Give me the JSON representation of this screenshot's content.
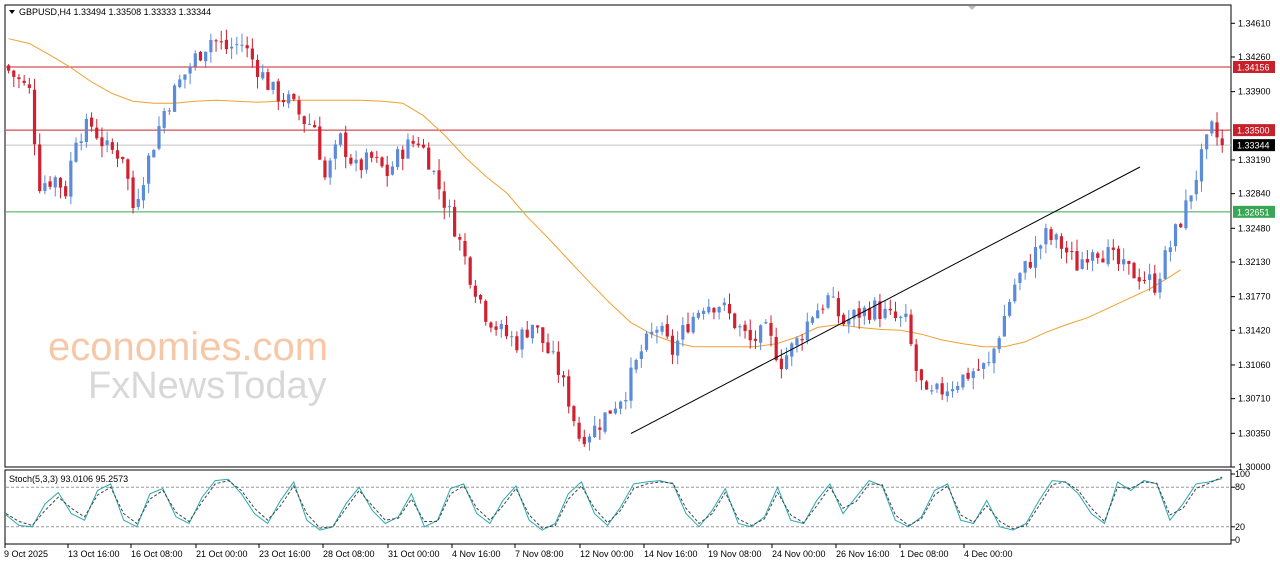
{
  "header": {
    "symbol_info": "GBPUSD,H4  1.33494 1.33508 1.33333 1.33344"
  },
  "watermark": {
    "line1": "economies.com",
    "line2": "FxNewsToday"
  },
  "colors": {
    "bull": "#5b8bd9",
    "bear": "#d1202f",
    "ma": "#f0a030",
    "resistance": "#c8202a",
    "support": "#3aa655",
    "current": "#000000",
    "trendline": "#000000",
    "stoch_main": "#2aa8b0",
    "stoch_signal": "#444444"
  },
  "chart_data": [
    {
      "type": "candlestick",
      "title": "GBPUSD,H4",
      "ylim": [
        1.3,
        1.348
      ],
      "y_ticks": [
        "1.34610",
        "1.34260",
        "1.33900",
        "1.33190",
        "1.32840",
        "1.32480",
        "1.32130",
        "1.31770",
        "1.31420",
        "1.31060",
        "1.30710",
        "1.30350",
        "1.30000"
      ],
      "x_ticks": [
        "9 Oct 2025",
        "13 Oct 16:00",
        "16 Oct 08:00",
        "21 Oct 00:00",
        "23 Oct 16:00",
        "28 Oct 08:00",
        "31 Oct 00:00",
        "4 Nov 16:00",
        "7 Nov 08:00",
        "12 Nov 00:00",
        "14 Nov 16:00",
        "19 Nov 08:00",
        "24 Nov 00:00",
        "26 Nov 16:00",
        "1 Dec 08:00",
        "4 Dec 00:00"
      ],
      "price_levels": [
        {
          "label": "1.34156",
          "value": 1.34156,
          "kind": "resistance"
        },
        {
          "label": "1.33500",
          "value": 1.335,
          "kind": "resistance"
        },
        {
          "label": "1.33344",
          "value": 1.33344,
          "kind": "current"
        },
        {
          "label": "1.32651",
          "value": 1.32651,
          "kind": "support"
        }
      ],
      "trendline": {
        "from": {
          "bar": 120,
          "price": 1.304
        },
        "to": {
          "bar": 191,
          "price": 1.332
        }
      },
      "close_path": [
        [
          0,
          1.3412
        ],
        [
          4,
          1.339
        ],
        [
          6,
          1.3295
        ],
        [
          9,
          1.33
        ],
        [
          11,
          1.3287
        ],
        [
          13,
          1.3345
        ],
        [
          16,
          1.3355
        ],
        [
          19,
          1.333
        ],
        [
          22,
          1.3325
        ],
        [
          24,
          1.327
        ],
        [
          27,
          1.332
        ],
        [
          30,
          1.337
        ],
        [
          33,
          1.34
        ],
        [
          36,
          1.3425
        ],
        [
          39,
          1.3445
        ],
        [
          42,
          1.3435
        ],
        [
          45,
          1.344
        ],
        [
          48,
          1.3415
        ],
        [
          51,
          1.339
        ],
        [
          54,
          1.338
        ],
        [
          57,
          1.336
        ],
        [
          59,
          1.3355
        ],
        [
          61,
          1.33
        ],
        [
          64,
          1.334
        ],
        [
          67,
          1.331
        ],
        [
          70,
          1.332
        ],
        [
          73,
          1.3305
        ],
        [
          76,
          1.333
        ],
        [
          79,
          1.334
        ],
        [
          81,
          1.332
        ],
        [
          83,
          1.329
        ],
        [
          86,
          1.325
        ],
        [
          89,
          1.32
        ],
        [
          92,
          1.316
        ],
        [
          95,
          1.314
        ],
        [
          98,
          1.313
        ],
        [
          101,
          1.315
        ],
        [
          104,
          1.312
        ],
        [
          106,
          1.31
        ],
        [
          108,
          1.307
        ],
        [
          110,
          1.3032
        ],
        [
          113,
          1.304
        ],
        [
          116,
          1.306
        ],
        [
          119,
          1.308
        ],
        [
          122,
          1.312
        ],
        [
          125,
          1.3145
        ],
        [
          128,
          1.312
        ],
        [
          131,
          1.315
        ],
        [
          134,
          1.317
        ],
        [
          137,
          1.317
        ],
        [
          140,
          1.315
        ],
        [
          143,
          1.313
        ],
        [
          146,
          1.314
        ],
        [
          149,
          1.311
        ],
        [
          152,
          1.313
        ],
        [
          155,
          1.316
        ],
        [
          158,
          1.3175
        ],
        [
          161,
          1.315
        ],
        [
          164,
          1.316
        ],
        [
          167,
          1.3165
        ],
        [
          170,
          1.3155
        ],
        [
          173,
          1.315
        ],
        [
          175,
          1.31
        ],
        [
          177,
          1.307
        ],
        [
          180,
          1.308
        ],
        [
          183,
          1.309
        ],
        [
          186,
          1.31
        ],
        [
          189,
          1.3105
        ],
        [
          191,
          1.314
        ],
        [
          194,
          1.319
        ],
        [
          197,
          1.3215
        ],
        [
          200,
          1.324
        ],
        [
          203,
          1.323
        ],
        [
          206,
          1.321
        ],
        [
          209,
          1.323
        ],
        [
          212,
          1.322
        ],
        [
          215,
          1.3205
        ],
        [
          218,
          1.32
        ],
        [
          221,
          1.319
        ],
        [
          224,
          1.323
        ],
        [
          227,
          1.327
        ],
        [
          230,
          1.332
        ],
        [
          232,
          1.335
        ],
        [
          234,
          1.33344
        ]
      ],
      "ma_path": [
        [
          0,
          1.3445
        ],
        [
          4,
          1.344
        ],
        [
          8,
          1.3428
        ],
        [
          12,
          1.3415
        ],
        [
          16,
          1.34
        ],
        [
          20,
          1.3388
        ],
        [
          24,
          1.338
        ],
        [
          28,
          1.3378
        ],
        [
          32,
          1.3378
        ],
        [
          36,
          1.338
        ],
        [
          40,
          1.3381
        ],
        [
          44,
          1.338
        ],
        [
          48,
          1.3379
        ],
        [
          52,
          1.338
        ],
        [
          56,
          1.3381
        ],
        [
          60,
          1.3381
        ],
        [
          64,
          1.3381
        ],
        [
          68,
          1.3381
        ],
        [
          72,
          1.338
        ],
        [
          76,
          1.3378
        ],
        [
          80,
          1.3365
        ],
        [
          84,
          1.3345
        ],
        [
          88,
          1.3322
        ],
        [
          92,
          1.3302
        ],
        [
          96,
          1.3285
        ],
        [
          100,
          1.326
        ],
        [
          104,
          1.3238
        ],
        [
          108,
          1.3215
        ],
        [
          112,
          1.3192
        ],
        [
          116,
          1.317
        ],
        [
          120,
          1.315
        ],
        [
          124,
          1.3138
        ],
        [
          128,
          1.313
        ],
        [
          132,
          1.3125
        ],
        [
          136,
          1.3125
        ],
        [
          140,
          1.3125
        ],
        [
          144,
          1.3125
        ],
        [
          148,
          1.3128
        ],
        [
          152,
          1.3135
        ],
        [
          156,
          1.3145
        ],
        [
          160,
          1.3148
        ],
        [
          164,
          1.3145
        ],
        [
          168,
          1.3143
        ],
        [
          172,
          1.3142
        ],
        [
          176,
          1.3138
        ],
        [
          180,
          1.3132
        ],
        [
          184,
          1.3128
        ],
        [
          188,
          1.3125
        ],
        [
          192,
          1.3125
        ],
        [
          196,
          1.313
        ],
        [
          200,
          1.314
        ],
        [
          204,
          1.3148
        ],
        [
          208,
          1.3155
        ],
        [
          212,
          1.3165
        ],
        [
          216,
          1.3175
        ],
        [
          220,
          1.3185
        ],
        [
          224,
          1.3198
        ],
        [
          226,
          1.3205
        ]
      ]
    },
    {
      "type": "line",
      "title": "Stoch(5,3,3) 93.0106 95.2573",
      "ylim": [
        0,
        100
      ],
      "y_ticks": [
        "100",
        "80",
        "20",
        "0"
      ],
      "levels": [
        80,
        20
      ],
      "series": [
        {
          "name": "main",
          "values": [
            38,
            22,
            20,
            55,
            72,
            40,
            30,
            75,
            85,
            30,
            20,
            70,
            78,
            35,
            25,
            65,
            90,
            92,
            70,
            40,
            25,
            60,
            88,
            30,
            15,
            20,
            55,
            80,
            45,
            25,
            35,
            70,
            20,
            30,
            78,
            85,
            40,
            25,
            60,
            82,
            30,
            15,
            25,
            70,
            88,
            40,
            22,
            50,
            85,
            88,
            90,
            85,
            40,
            20,
            45,
            78,
            25,
            20,
            35,
            80,
            30,
            25,
            60,
            85,
            40,
            65,
            90,
            82,
            30,
            20,
            35,
            75,
            85,
            30,
            25,
            60,
            20,
            15,
            25,
            60,
            90,
            88,
            70,
            40,
            25,
            88,
            75,
            90,
            85,
            30,
            55,
            85,
            88,
            93
          ]
        },
        {
          "name": "signal",
          "values": [
            40,
            28,
            22,
            45,
            65,
            48,
            35,
            68,
            80,
            40,
            25,
            62,
            75,
            42,
            28,
            58,
            85,
            90,
            75,
            48,
            30,
            52,
            82,
            40,
            18,
            20,
            48,
            75,
            52,
            30,
            33,
            62,
            28,
            28,
            70,
            82,
            48,
            30,
            52,
            78,
            38,
            18,
            22,
            62,
            82,
            48,
            26,
            45,
            78,
            85,
            88,
            86,
            48,
            25,
            40,
            72,
            32,
            22,
            32,
            72,
            38,
            26,
            52,
            80,
            48,
            58,
            85,
            84,
            38,
            22,
            32,
            68,
            82,
            38,
            27,
            52,
            28,
            17,
            22,
            52,
            84,
            88,
            75,
            48,
            28,
            80,
            78,
            88,
            86,
            38,
            48,
            78,
            86,
            95.26
          ]
        }
      ]
    }
  ]
}
